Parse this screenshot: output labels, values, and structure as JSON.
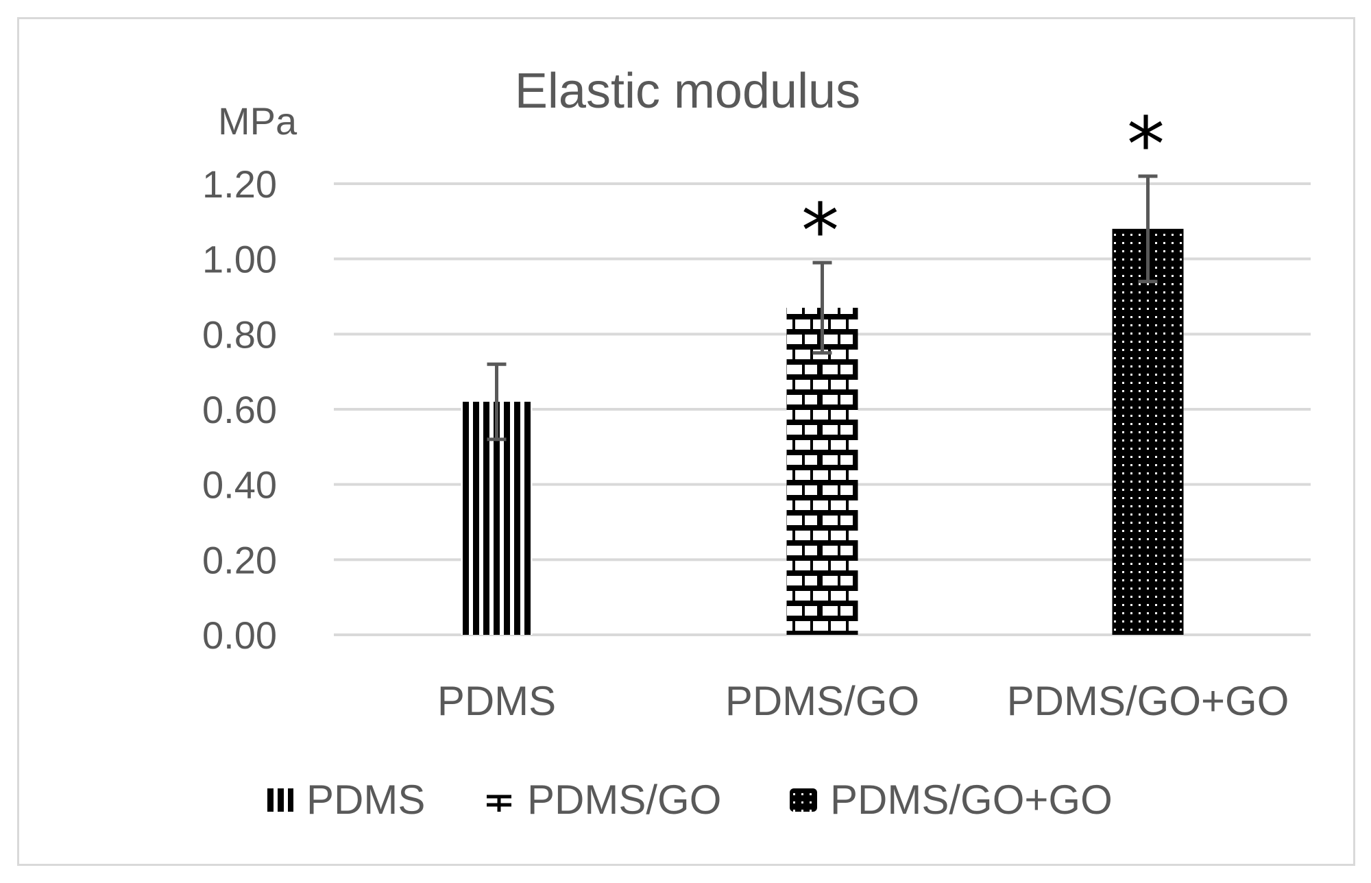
{
  "chart_data": {
    "type": "bar",
    "title": "Elastic modulus",
    "ylabel": "MPa",
    "ylim": [
      0,
      1.2
    ],
    "yticks": [
      "0.00",
      "0.20",
      "0.40",
      "0.60",
      "0.80",
      "1.00",
      "1.20"
    ],
    "categories": [
      "PDMS",
      "PDMS/GO",
      "PDMS/GO+GO"
    ],
    "values": [
      0.62,
      0.87,
      1.08
    ],
    "error": [
      0.1,
      0.12,
      0.14
    ],
    "significance": [
      "",
      "*",
      "*"
    ],
    "legend": [
      "PDMS",
      "PDMS/GO",
      "PDMS/GO+GO"
    ],
    "legend_position": "bottom",
    "grid": true,
    "colors": {
      "gridline": "#d9d9d9",
      "text": "#595959",
      "bar": "#000000",
      "error_bar": "#595959"
    }
  }
}
